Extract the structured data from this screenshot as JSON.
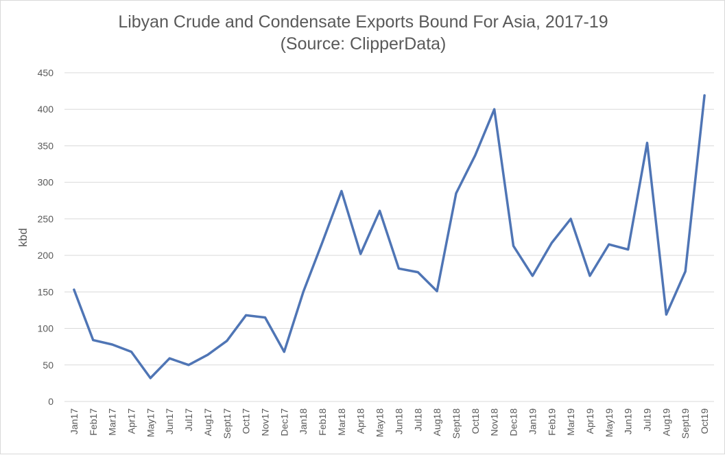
{
  "chart_data": {
    "type": "line",
    "title": "Libyan Crude and Condensate Exports Bound For Asia, 2017-19",
    "subtitle": "(Source: ClipperData)",
    "xlabel": "",
    "ylabel": "kbd",
    "ylim": [
      0,
      450
    ],
    "yticks": [
      0,
      50,
      100,
      150,
      200,
      250,
      300,
      350,
      400,
      450
    ],
    "grid": "horizontal",
    "legend": "none",
    "line_color": "#4f75b5",
    "categories": [
      "Jan17",
      "Feb17",
      "Mar17",
      "Apr17",
      "May17",
      "Jun17",
      "Jul17",
      "Aug17",
      "Sept17",
      "Oct17",
      "Nov17",
      "Dec17",
      "Jan18",
      "Feb18",
      "Mar18",
      "Apr18",
      "May18",
      "Jun18",
      "Jul18",
      "Aug18",
      "Sept18",
      "Oct18",
      "Nov18",
      "Dec18",
      "Jan19",
      "Feb19",
      "Mar19",
      "Apr19",
      "May19",
      "Jun19",
      "Jul19",
      "Aug19",
      "Sept19",
      "Oct19"
    ],
    "series": [
      {
        "values": [
          153,
          84,
          78,
          68,
          32,
          59,
          50,
          64,
          83,
          118,
          115,
          68,
          150,
          218,
          288,
          202,
          261,
          182,
          177,
          151,
          285,
          337,
          400,
          213,
          172,
          217,
          250,
          172,
          215,
          208,
          354,
          119,
          178,
          419
        ]
      }
    ]
  }
}
